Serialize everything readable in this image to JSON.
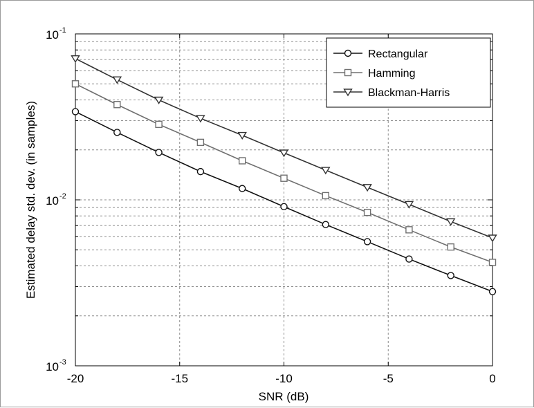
{
  "chart_data": {
    "type": "line",
    "xlabel": "SNR (dB)",
    "ylabel": "Estimated delay std. dev. (in samples)",
    "xlim": [
      -20,
      0
    ],
    "ylim": [
      0.001,
      0.1
    ],
    "yscale": "log",
    "grid": true,
    "legend_position": "top-right",
    "x_ticks": [
      "-20",
      "-15",
      "-10",
      "-5",
      "0"
    ],
    "y_ticks": [
      {
        "base": "10",
        "exp": "-3"
      },
      {
        "base": "10",
        "exp": "-2"
      },
      {
        "base": "10",
        "exp": "-1"
      }
    ],
    "x": [
      -20,
      -18,
      -16,
      -14,
      -12,
      -10,
      -8,
      -6,
      -4,
      -2,
      0
    ],
    "series": [
      {
        "name": "Rectangular",
        "marker": "circle",
        "color": "#111111",
        "values": [
          0.034,
          0.0255,
          0.0193,
          0.0148,
          0.0117,
          0.0091,
          0.0071,
          0.0056,
          0.0044,
          0.0035,
          0.0028
        ]
      },
      {
        "name": "Hamming",
        "marker": "square",
        "color": "#707070",
        "values": [
          0.05,
          0.0375,
          0.0285,
          0.0222,
          0.0172,
          0.0135,
          0.0106,
          0.0084,
          0.0066,
          0.0052,
          0.0042
        ]
      },
      {
        "name": "Blackman-Harris",
        "marker": "triangle-down",
        "color": "#333333",
        "values": [
          0.071,
          0.053,
          0.04,
          0.031,
          0.0245,
          0.0192,
          0.0151,
          0.0119,
          0.0094,
          0.0074,
          0.0059
        ]
      }
    ]
  }
}
